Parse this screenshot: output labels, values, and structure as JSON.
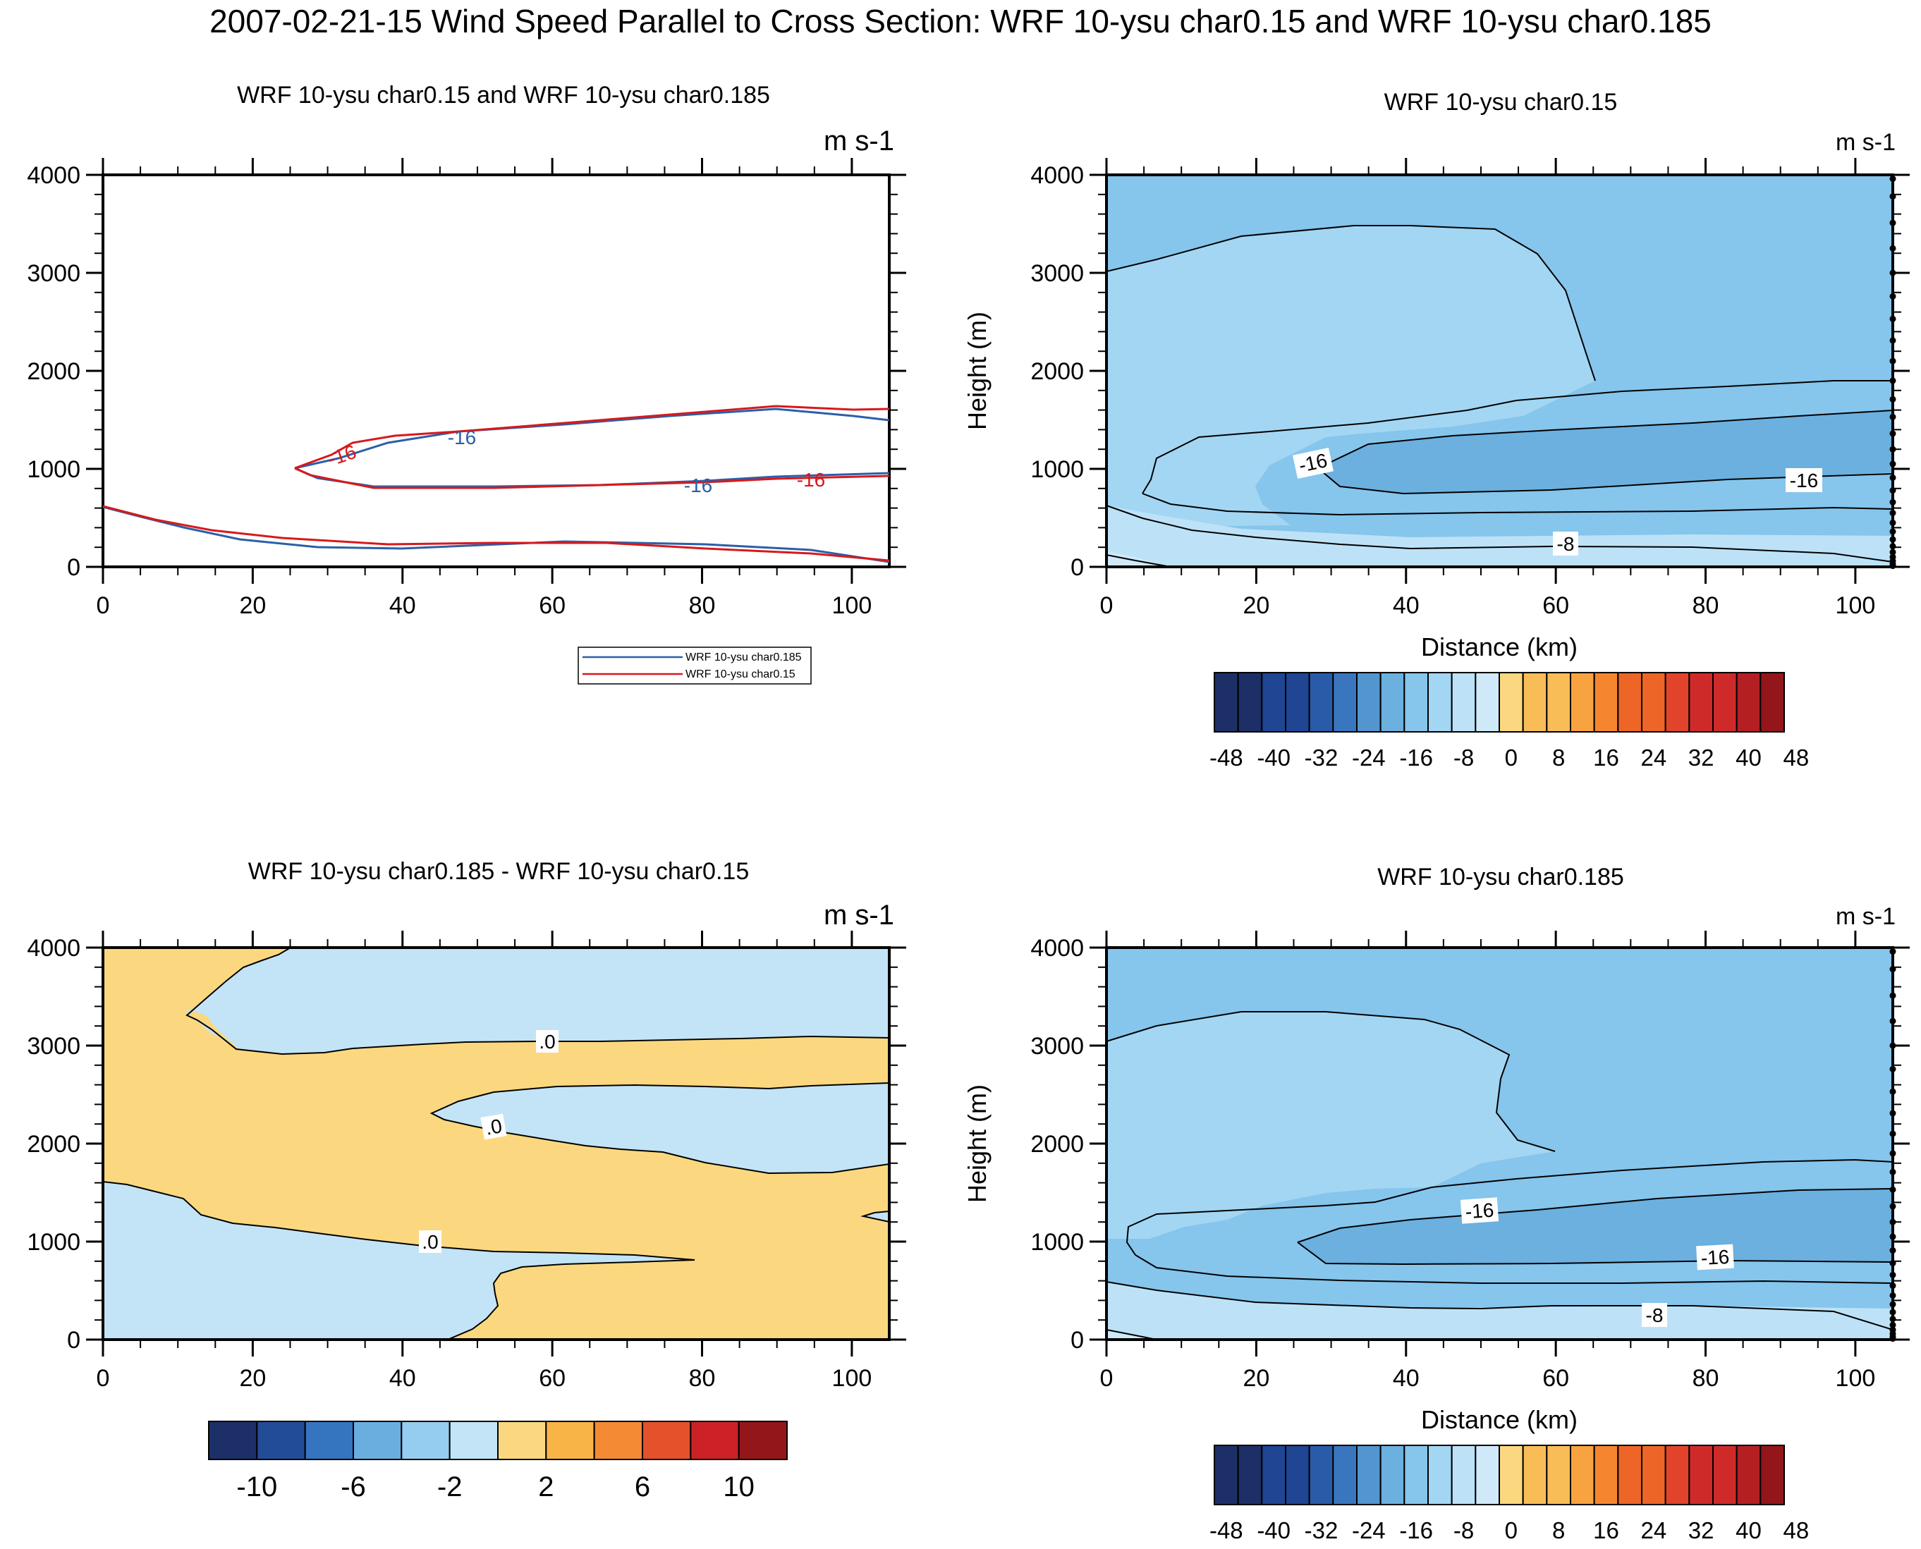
{
  "title": "2007-02-21-15 Wind Speed Parallel to Cross Section: WRF 10-ysu char0.15 and WRF 10-ysu char0.185",
  "colors": {
    "red_line": "#d7191c",
    "blue_line": "#2b5fa8",
    "blue_levels": [
      "#1c2f66",
      "#1f4593",
      "#2a5ba8",
      "#3a76bd",
      "#5295cf",
      "#6bb0de",
      "#86c5ec",
      "#a3d6f3",
      "#bde2f7",
      "#cfe9f8"
    ],
    "warm_levels": [
      "#fbd87f",
      "#f9bd57",
      "#f8a340",
      "#f5862f",
      "#ed6628",
      "#e1442a",
      "#cf2a2a",
      "#b41f24",
      "#92161a"
    ],
    "diff_blues": [
      "#1c2f66",
      "#224c98",
      "#3574bf",
      "#6aaee0",
      "#95cdf0",
      "#c3e4f7"
    ],
    "diff_warms": [
      "#fbd87f",
      "#f9b447",
      "#f48a33",
      "#e5512a",
      "#cc2227",
      "#93161a"
    ]
  },
  "panels": [
    {
      "id": "overlay",
      "title": "WRF 10-ysu char0.15 and WRF 10-ysu char0.185",
      "units": "m s-1",
      "xticks": [
        "0",
        "20",
        "40",
        "60",
        "80",
        "100"
      ],
      "yticks": [
        "0",
        "1000",
        "2000",
        "3000",
        "4000"
      ],
      "contour_labels": [
        {
          "text": "-16",
          "color": "red"
        },
        {
          "text": "-16",
          "color": "blue"
        },
        {
          "text": "-16",
          "color": "blue"
        },
        {
          "text": "-16",
          "color": "red"
        }
      ],
      "legend": [
        {
          "label": "WRF 10-ysu char0.185",
          "color": "blue"
        },
        {
          "label": "WRF 10-ysu char0.15",
          "color": "red"
        }
      ]
    },
    {
      "id": "char015",
      "title": "WRF 10-ysu char0.15",
      "units": "m s-1",
      "xlabel": "Distance (km)",
      "ylabel": "Height (m)",
      "xticks": [
        "0",
        "20",
        "40",
        "60",
        "80",
        "100"
      ],
      "yticks": [
        "0",
        "1000",
        "2000",
        "3000",
        "4000"
      ],
      "contour_labels": [
        "-16",
        "-16",
        "-8"
      ],
      "colorbar_labels": [
        "-48",
        "-40",
        "-32",
        "-24",
        "-16",
        "-8",
        "0",
        "8",
        "16",
        "24",
        "32",
        "40",
        "48"
      ]
    },
    {
      "id": "difference",
      "title": "WRF 10-ysu char0.185 - WRF 10-ysu char0.15",
      "units": "m s-1",
      "xticks": [
        "0",
        "20",
        "40",
        "60",
        "80",
        "100"
      ],
      "yticks": [
        "0",
        "1000",
        "2000",
        "3000",
        "4000"
      ],
      "contour_labels": [
        ".0",
        ".0",
        ".0"
      ],
      "colorbar_labels": [
        "-10",
        "-6",
        "-2",
        "2",
        "6",
        "10"
      ]
    },
    {
      "id": "char0185",
      "title": "WRF 10-ysu char0.185",
      "units": "m s-1",
      "xlabel": "Distance (km)",
      "ylabel": "Height (m)",
      "xticks": [
        "0",
        "20",
        "40",
        "60",
        "80",
        "100"
      ],
      "yticks": [
        "0",
        "1000",
        "2000",
        "3000",
        "4000"
      ],
      "contour_labels": [
        "-16",
        "-16",
        "-8"
      ],
      "colorbar_labels": [
        "-48",
        "-40",
        "-32",
        "-24",
        "-16",
        "-8",
        "0",
        "8",
        "16",
        "24",
        "32",
        "40",
        "48"
      ]
    }
  ],
  "chart_data": [
    {
      "type": "line",
      "title": "WRF 10-ysu char0.15 and WRF 10-ysu char0.185",
      "units": "m s-1",
      "xlim": [
        0,
        105
      ],
      "ylim": [
        0,
        4000
      ],
      "series": [
        {
          "name": "WRF 10-ysu char0.15",
          "level": -16,
          "x": [
            25,
            28,
            35,
            45,
            60,
            80,
            100,
            105
          ],
          "y": [
            1000,
            1100,
            1280,
            1370,
            1440,
            1510,
            1590,
            1600
          ]
        },
        {
          "name": "WRF 10-ysu char0.185",
          "level": -16,
          "x": [
            25,
            28,
            35,
            45,
            60,
            80,
            100,
            105
          ],
          "y": [
            1000,
            1080,
            1230,
            1330,
            1400,
            1460,
            1530,
            1500
          ]
        }
      ]
    },
    {
      "type": "heatmap",
      "title": "WRF 10-ysu char0.15",
      "xlabel": "Distance (km)",
      "ylabel": "Height (m)",
      "xlim": [
        0,
        105
      ],
      "ylim": [
        0,
        4000
      ],
      "levels": [
        -48,
        -44,
        -40,
        -36,
        -32,
        -28,
        -24,
        -20,
        -16,
        -12,
        -8,
        -4,
        0,
        4,
        8,
        12,
        16,
        20,
        24,
        28,
        32,
        36,
        40,
        44,
        48
      ],
      "contour_levels_labeled": [
        -16,
        -16,
        -8
      ]
    },
    {
      "type": "heatmap",
      "title": "WRF 10-ysu char0.185 - WRF 10-ysu char0.15",
      "units": "m s-1",
      "xlim": [
        0,
        105
      ],
      "ylim": [
        0,
        4000
      ],
      "levels": [
        -12,
        -10,
        -8,
        -6,
        -4,
        -2,
        0,
        2,
        4,
        6,
        8,
        10,
        12
      ],
      "contour_levels_labeled": [
        0,
        0,
        0
      ]
    },
    {
      "type": "heatmap",
      "title": "WRF 10-ysu char0.185",
      "xlabel": "Distance (km)",
      "ylabel": "Height (m)",
      "xlim": [
        0,
        105
      ],
      "ylim": [
        0,
        4000
      ],
      "levels": [
        -48,
        -44,
        -40,
        -36,
        -32,
        -28,
        -24,
        -20,
        -16,
        -12,
        -8,
        -4,
        0,
        4,
        8,
        12,
        16,
        20,
        24,
        28,
        32,
        36,
        40,
        44,
        48
      ],
      "contour_levels_labeled": [
        -16,
        -16,
        -8
      ]
    }
  ]
}
